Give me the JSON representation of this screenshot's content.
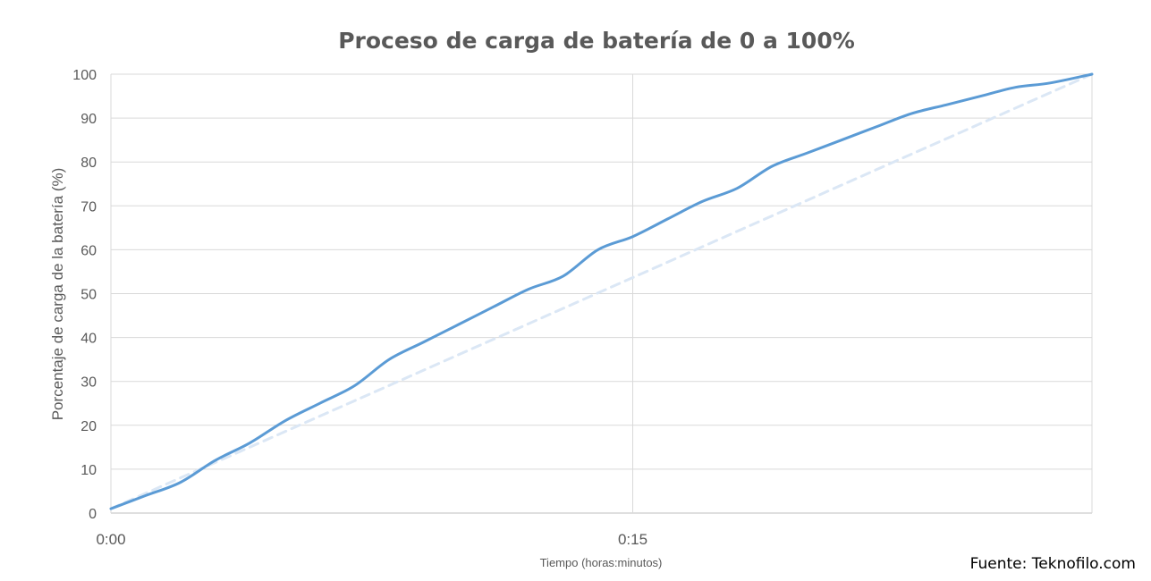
{
  "chart_data": {
    "type": "line",
    "title": "Proceso de carga de batería de 0 a 100%",
    "xlabel": "Tiempo (horas:minutos)",
    "ylabel": "Porcentaje de carga de la batería (%)",
    "x_unit": "minutes",
    "xlim": [
      0,
      28.2
    ],
    "ylim": [
      0,
      100
    ],
    "y_ticks": [
      "0",
      "10",
      "20",
      "30",
      "40",
      "50",
      "60",
      "70",
      "80",
      "90",
      "100"
    ],
    "x_ticks": [
      {
        "value": 0,
        "label": "0:00"
      },
      {
        "value": 15,
        "label": "0:15"
      }
    ],
    "grid": true,
    "source": "Fuente: Teknofilo.com",
    "series": [
      {
        "color": "#5b9bd5",
        "style": "solid",
        "x": [
          0,
          1.0,
          2.0,
          3.0,
          4.0,
          5.0,
          6.0,
          7.0,
          8.0,
          9.0,
          10.0,
          11.0,
          12.0,
          13.0,
          14.0,
          15.0,
          16.0,
          17.0,
          18.0,
          19.0,
          20.0,
          21.0,
          22.0,
          23.0,
          24.0,
          25.0,
          26.0,
          27.0,
          28.2
        ],
        "y": [
          1,
          4,
          7,
          12,
          16,
          21,
          25,
          29,
          35,
          39,
          43,
          47,
          51,
          54,
          60,
          63,
          67,
          71,
          74,
          79,
          82,
          85,
          88,
          91,
          93,
          95,
          97,
          98,
          100
        ]
      },
      {
        "color": "#dbe7f5",
        "style": "dashed",
        "x": [
          0,
          28.2
        ],
        "y": [
          1,
          100
        ]
      }
    ]
  }
}
